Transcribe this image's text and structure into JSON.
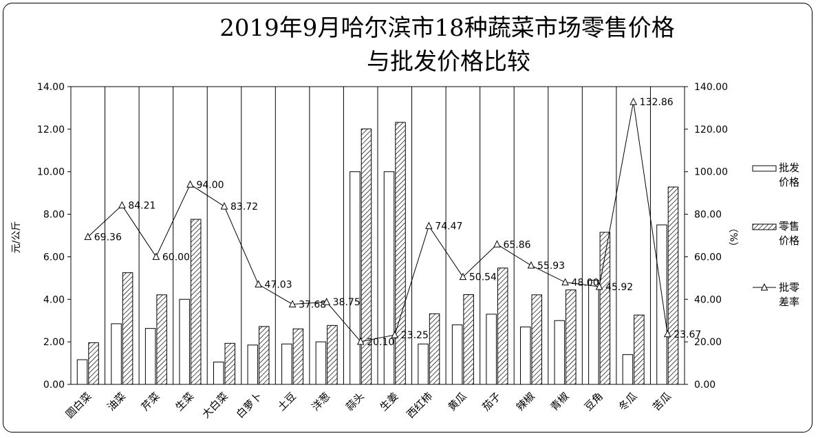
{
  "chart_data": {
    "type": "bar",
    "title_line1": "2019年9月哈尔滨市18种蔬菜市场零售价格",
    "title_line2": "与批发价格比较",
    "ylabel_left": "元/公斤",
    "ylabel_right": "（%）",
    "ylim_left": [
      0,
      14
    ],
    "ylim_right": [
      0,
      140
    ],
    "yticks_left": [
      "0.00",
      "2.00",
      "4.00",
      "6.00",
      "8.00",
      "10.00",
      "12.00",
      "14.00"
    ],
    "yticks_right": [
      "0.00",
      "20.00",
      "40.00",
      "60.00",
      "80.00",
      "100.00",
      "120.00",
      "140.00"
    ],
    "grid": "vertical",
    "legend_position": "right",
    "categories": [
      "圆白菜",
      "油菜",
      "芹菜",
      "生菜",
      "大白菜",
      "白萝卜",
      "土豆",
      "洋葱",
      "蒜头",
      "生姜",
      "西红柿",
      "黄瓜",
      "茄子",
      "辣椒",
      "青椒",
      "豆角",
      "冬瓜",
      "苦瓜"
    ],
    "series": [
      {
        "name": "批发价格",
        "legend_lines": [
          "批发",
          "价格"
        ],
        "kind": "bar",
        "axis": "left",
        "pattern": "plain",
        "values": [
          1.16,
          2.85,
          2.63,
          4.0,
          1.05,
          1.85,
          1.9,
          2.0,
          10.0,
          10.0,
          1.9,
          2.8,
          3.3,
          2.7,
          3.0,
          4.9,
          1.4,
          7.5
        ]
      },
      {
        "name": "零售价格",
        "legend_lines": [
          "零售",
          "价格"
        ],
        "kind": "bar",
        "axis": "left",
        "pattern": "hatch",
        "values": [
          1.96,
          5.25,
          4.21,
          7.76,
          1.93,
          2.72,
          2.61,
          2.77,
          12.01,
          12.32,
          3.32,
          4.22,
          5.47,
          4.21,
          4.44,
          7.15,
          3.26,
          9.28
        ]
      },
      {
        "name": "批零差率",
        "legend_lines": [
          "批零",
          "差率"
        ],
        "kind": "line",
        "axis": "right",
        "marker": "triangle",
        "values": [
          69.36,
          84.21,
          60.0,
          94.0,
          83.72,
          47.03,
          37.68,
          38.75,
          20.1,
          23.25,
          74.47,
          50.54,
          65.86,
          55.93,
          48.0,
          45.92,
          132.86,
          23.67
        ],
        "data_labels": [
          "69.36",
          "84.21",
          "60.00",
          "94.00",
          "83.72",
          "47.03",
          "37.68",
          "38.75",
          "20.10",
          "23.25",
          "74.47",
          "50.54",
          "65.86",
          "55.93",
          "48.00",
          "45.92",
          "132.86",
          "23.67"
        ]
      }
    ]
  }
}
